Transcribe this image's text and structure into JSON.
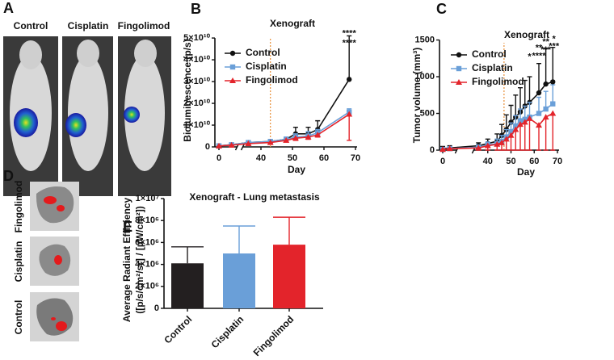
{
  "images": [
    {
      "panel_label": "A",
      "labels": [
        "Control",
        "Cisplatin",
        "Fingolimod"
      ]
    },
    {
      "panel_label": "D",
      "labels": [
        "Fingolimod",
        "Cisplatin",
        "Control"
      ]
    }
  ],
  "chart_data": [
    {
      "type": "line",
      "panel_label": "B",
      "title": "Xenograft",
      "xlabel": "Day",
      "ylabel": "Bioluminescence (p/s)",
      "x": [
        0,
        4,
        36,
        43,
        48,
        51,
        55,
        58,
        68
      ],
      "xlim": [
        0,
        70
      ],
      "xbreak": [
        5,
        35
      ],
      "xticks": [
        0,
        40,
        50,
        60,
        70
      ],
      "ylim": [
        0,
        53000000000
      ],
      "yticks": [
        0,
        {
          "value": 10000000000,
          "label": "1×10¹⁰"
        },
        {
          "value": 20000000000,
          "label": "2×10¹⁰"
        },
        {
          "value": 30000000000,
          "label": "3×10¹⁰"
        },
        {
          "value": 40000000000,
          "label": "4×10¹⁰"
        },
        {
          "value": 50000000000,
          "label": "5×10¹⁰"
        }
      ],
      "event_x": 43,
      "event_color": "#e8903a",
      "series": [
        {
          "name": "Control",
          "color": "#111111",
          "marker": "circle",
          "error_direction": "up",
          "values": [
            500000000,
            1000000000,
            2000000000,
            2500000000,
            3500000000,
            6000000000,
            6000000000,
            8000000000,
            31000000000
          ],
          "errors": [
            300000000,
            300000000,
            300000000,
            500000000,
            800000000,
            3000000000,
            3000000000,
            4000000000,
            20000000000
          ]
        },
        {
          "name": "Cisplatin",
          "color": "#6a9fd8",
          "marker": "square",
          "error_direction": "up",
          "values": [
            500000000,
            1000000000,
            2000000000,
            2500000000,
            3500000000,
            4500000000,
            5000000000,
            6500000000,
            16000000000
          ],
          "errors": [
            200000000,
            200000000,
            300000000,
            500000000,
            1000000000,
            1500000000,
            2000000000,
            1500000000,
            1500000000
          ]
        },
        {
          "name": "Fingolimod",
          "color": "#e3242b",
          "marker": "triangle",
          "error_direction": "down",
          "values": [
            400000000,
            800000000,
            1500000000,
            2000000000,
            3000000000,
            4000000000,
            4500000000,
            5500000000,
            15000000000
          ],
          "errors": [
            200000000,
            200000000,
            300000000,
            500000000,
            800000000,
            1000000000,
            1000000000,
            1000000000,
            12000000000
          ]
        }
      ],
      "annotations": [
        {
          "x": 68,
          "y": 52000000000,
          "text": "****",
          "color": "#6a9fd8"
        },
        {
          "x": 68,
          "y": 47500000000,
          "text": "****",
          "color": "#e3242b"
        }
      ]
    },
    {
      "type": "line",
      "panel_label": "C",
      "title": "Xenograft",
      "xlabel": "Day",
      "ylabel": "Tumor volume (mm³)",
      "x": [
        0,
        3,
        36,
        40,
        44,
        46,
        48,
        50,
        52,
        54,
        56,
        58,
        62,
        65,
        68
      ],
      "xlim": [
        0,
        70
      ],
      "xbreak": [
        5,
        35
      ],
      "xticks": [
        0,
        40,
        50,
        60,
        70
      ],
      "ylim": [
        0,
        1550
      ],
      "yticks": [
        0,
        500,
        1000,
        1500
      ],
      "event_x": 47,
      "event_color": "#e8903a",
      "series": [
        {
          "name": "Control",
          "color": "#111111",
          "marker": "circle",
          "error_direction": "up",
          "values": [
            20,
            30,
            60,
            90,
            120,
            200,
            280,
            380,
            450,
            520,
            600,
            650,
            780,
            900,
            930
          ],
          "errors": [
            30,
            30,
            40,
            60,
            100,
            150,
            200,
            230,
            300,
            330,
            350,
            350,
            400,
            480,
            470
          ]
        },
        {
          "name": "Cisplatin",
          "color": "#6a9fd8",
          "marker": "square",
          "error_direction": "up",
          "values": [
            10,
            20,
            40,
            70,
            90,
            120,
            180,
            250,
            330,
            400,
            420,
            450,
            500,
            560,
            630
          ],
          "errors": [
            20,
            20,
            30,
            40,
            60,
            80,
            100,
            120,
            140,
            160,
            180,
            200,
            220,
            240,
            260
          ]
        },
        {
          "name": "Fingolimod",
          "color": "#e3242b",
          "marker": "triangle",
          "error_direction": "down",
          "values": [
            10,
            20,
            30,
            60,
            80,
            100,
            150,
            200,
            280,
            350,
            380,
            430,
            340,
            450,
            500
          ],
          "errors": [
            10,
            20,
            30,
            60,
            80,
            100,
            150,
            200,
            280,
            350,
            380,
            430,
            340,
            450,
            500
          ]
        }
      ],
      "annotations": [
        {
          "x": 58,
          "y": 1270,
          "text": "*",
          "color": "#e3242b"
        },
        {
          "x": 62,
          "y": 1390,
          "text": "**",
          "color": "#6a9fd8"
        },
        {
          "x": 62,
          "y": 1280,
          "text": "****",
          "color": "#e3242b"
        },
        {
          "x": 65,
          "y": 1470,
          "text": "**",
          "color": "#6a9fd8"
        },
        {
          "x": 65,
          "y": 1360,
          "text": "***",
          "color": "#e3242b"
        },
        {
          "x": 68.5,
          "y": 1510,
          "text": "*",
          "color": "#6a9fd8"
        },
        {
          "x": 68.5,
          "y": 1410,
          "text": "***",
          "color": "#e3242b"
        }
      ]
    },
    {
      "type": "bar",
      "panel_label": "E",
      "title": "Xenograft - Lung metastasis",
      "ylabel": [
        "Average Radiant Efficiency",
        "([p/s/cm²/sr] / [µW/cm²])"
      ],
      "categories": [
        "Control",
        "Cisplatin",
        "Fingolimod"
      ],
      "values": [
        4100000,
        5000000,
        5800000
      ],
      "errors": [
        1500000,
        2500000,
        2500000
      ],
      "colors": [
        "#231f20",
        "#6a9fd8",
        "#e3242b"
      ],
      "ylim": [
        0,
        10000000
      ],
      "yticks": [
        0,
        {
          "value": 2000000,
          "label": "2×10⁶"
        },
        {
          "value": 4000000,
          "label": "4×10⁶"
        },
        {
          "value": 6000000,
          "label": "6×10⁶"
        },
        {
          "value": 8000000,
          "label": "8×10⁶"
        },
        {
          "value": 10000000,
          "label": "1×10⁷"
        }
      ]
    }
  ]
}
